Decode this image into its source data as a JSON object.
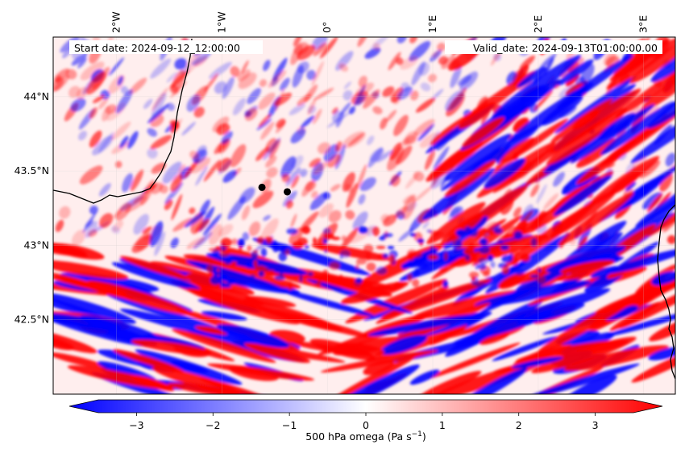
{
  "map": {
    "start_date_text": "Start date: 2024-09-12_12:00:00",
    "valid_date_text": "Valid_date: 2024-09-13T01:00:00.00",
    "longitude_ticks": [
      {
        "label": "2°W",
        "value": -2
      },
      {
        "label": "1°W",
        "value": -1
      },
      {
        "label": "0°",
        "value": 0
      },
      {
        "label": "1°E",
        "value": 1
      },
      {
        "label": "2°E",
        "value": 2
      },
      {
        "label": "3°E",
        "value": 3
      }
    ],
    "latitude_ticks": [
      {
        "label": "44°N",
        "value": 44.0
      },
      {
        "label": "43.5°N",
        "value": 43.5
      },
      {
        "label": "43°N",
        "value": 43.0
      },
      {
        "label": "42.5°N",
        "value": 42.5
      }
    ],
    "lon_range": [
      -2.6,
      3.3
    ],
    "lat_range": [
      42.0,
      44.4
    ],
    "points": [
      {
        "name": "point-1",
        "lon": -0.62,
        "lat": 43.39
      },
      {
        "name": "point-2",
        "lon": -0.38,
        "lat": 43.36
      }
    ],
    "colorbar": {
      "label_prefix": "500 hPa omega (Pa s",
      "label_sup": "−1",
      "label_suffix": ")",
      "ticks": [
        {
          "label": "−3",
          "value": -3
        },
        {
          "label": "−2",
          "value": -2
        },
        {
          "label": "−1",
          "value": -1
        },
        {
          "label": "0",
          "value": 0
        },
        {
          "label": "1",
          "value": 1
        },
        {
          "label": "2",
          "value": 2
        },
        {
          "label": "3",
          "value": 3
        }
      ],
      "range": [
        -3.5,
        3.5
      ],
      "extend": "both",
      "cmap": "bwr",
      "low_color": "#0000ff",
      "mid_color": "#ffffff",
      "high_color": "#ff0000"
    },
    "colors": {
      "coastline": "#000000",
      "gridline": "#cccccc",
      "marker": "#000000"
    }
  }
}
